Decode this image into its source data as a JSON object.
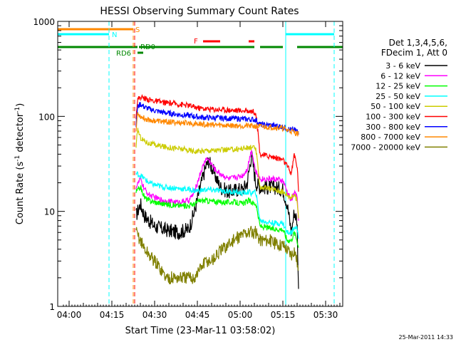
{
  "chart_data": {
    "type": "line",
    "title": "HESSI Observing Summary Count Rates",
    "xlabel": "Start Time (23-Mar-11 03:58:02)",
    "ylabel_main": "Count Rate (s",
    "ylabel_sup1": "-1",
    "ylabel_mid": " detector",
    "ylabel_sup2": "-1",
    "ylabel_end": ")",
    "x_unit": "minutes since 03:58:02",
    "xlim": [
      -2,
      98
    ],
    "ylog": true,
    "ylim": [
      1,
      1000
    ],
    "x_ticks": [
      {
        "label": "04:00",
        "x": 2
      },
      {
        "label": "04:15",
        "x": 17
      },
      {
        "label": "04:30",
        "x": 32
      },
      {
        "label": "04:45",
        "x": 47
      },
      {
        "label": "05:00",
        "x": 62
      },
      {
        "label": "05:15",
        "x": 77
      },
      {
        "label": "05:30",
        "x": 92
      }
    ],
    "y_ticks": [
      {
        "label": "1",
        "y": 1
      },
      {
        "label": "10",
        "y": 10
      },
      {
        "label": "100",
        "y": 100
      },
      {
        "label": "1000",
        "y": 1000
      }
    ],
    "legend_header": [
      "Det 1,3,4,5,6,",
      "FDecim 1, Att 0"
    ],
    "legend_placement": "right",
    "flags": [
      {
        "name": "S",
        "label": "S",
        "color": "#ff8800",
        "segments": [
          [
            -2,
            24.5
          ]
        ]
      },
      {
        "name": "N",
        "label": "N",
        "color": "#00ffff",
        "segments": [
          [
            -2,
            16
          ],
          [
            78,
            95
          ]
        ]
      },
      {
        "name": "F",
        "label": "F",
        "color": "#ff0000",
        "segments": [
          [
            49,
            55
          ],
          [
            65,
            67
          ]
        ]
      },
      {
        "name": "RD0",
        "label": "RD0",
        "color": "#008800",
        "segments": [
          [
            -2,
            26
          ],
          [
            26.5,
            67
          ],
          [
            69,
            77
          ],
          [
            82,
            98
          ]
        ]
      },
      {
        "name": "RD6",
        "label": "RD6",
        "color": "#008800",
        "segments": [
          [
            26,
            28
          ]
        ]
      }
    ],
    "vlines": [
      {
        "x": 16,
        "color": "#00ffff",
        "style": "dashed"
      },
      {
        "x": 24.5,
        "color": "#ff8800",
        "style": "dashed"
      },
      {
        "x": 25,
        "color": "#ff0000",
        "style": "dashed"
      },
      {
        "x": 78,
        "color": "#00ffff",
        "style": "solid"
      },
      {
        "x": 95,
        "color": "#00ffff",
        "style": "dashed"
      }
    ],
    "series": [
      {
        "name": "3 - 6 keV",
        "color": "#000000",
        "points": [
          [
            25.5,
            9
          ],
          [
            27,
            12
          ],
          [
            28.5,
            9
          ],
          [
            30,
            8
          ],
          [
            32,
            7
          ],
          [
            35,
            6.5
          ],
          [
            40,
            6
          ],
          [
            44,
            6.5
          ],
          [
            46,
            10
          ],
          [
            48,
            18
          ],
          [
            50,
            30
          ],
          [
            51,
            34
          ],
          [
            53,
            25
          ],
          [
            55,
            18
          ],
          [
            58,
            16
          ],
          [
            61,
            17
          ],
          [
            63,
            17
          ],
          [
            64.5,
            20
          ],
          [
            66,
            40
          ],
          [
            67.5,
            20
          ],
          [
            69,
            18
          ],
          [
            74,
            18
          ],
          [
            77,
            17
          ],
          [
            78.5,
            12
          ],
          [
            80,
            6
          ],
          [
            81,
            10
          ],
          [
            82,
            8
          ],
          [
            82.6,
            1
          ]
        ]
      },
      {
        "name": "6 - 12 keV",
        "color": "#ff00ff",
        "points": [
          [
            25.5,
            18
          ],
          [
            27,
            22
          ],
          [
            28.5,
            17
          ],
          [
            30,
            15
          ],
          [
            32,
            14
          ],
          [
            35,
            13
          ],
          [
            40,
            12.5
          ],
          [
            44,
            13
          ],
          [
            46,
            16
          ],
          [
            48,
            25
          ],
          [
            50,
            36
          ],
          [
            51,
            35
          ],
          [
            53,
            28
          ],
          [
            55,
            25
          ],
          [
            58,
            22
          ],
          [
            61,
            23
          ],
          [
            63,
            24
          ],
          [
            64.5,
            28
          ],
          [
            66,
            45
          ],
          [
            67.5,
            26
          ],
          [
            69,
            22
          ],
          [
            74,
            22
          ],
          [
            77,
            21
          ],
          [
            78.5,
            16
          ],
          [
            80,
            13
          ],
          [
            81,
            16
          ],
          [
            82,
            14
          ],
          [
            82.6,
            7
          ]
        ]
      },
      {
        "name": "12 - 25 keV",
        "color": "#00ff00",
        "points": [
          [
            25.5,
            16
          ],
          [
            27,
            18
          ],
          [
            28.5,
            14
          ],
          [
            30,
            13
          ],
          [
            32,
            12.5
          ],
          [
            35,
            12
          ],
          [
            40,
            11.5
          ],
          [
            44,
            11.5
          ],
          [
            46,
            12
          ],
          [
            48,
            13
          ],
          [
            50,
            13
          ],
          [
            55,
            12.5
          ],
          [
            60,
            12.5
          ],
          [
            63,
            12
          ],
          [
            65,
            13
          ],
          [
            66,
            12.5
          ],
          [
            67.5,
            12
          ],
          [
            69,
            7
          ],
          [
            74,
            6.5
          ],
          [
            77,
            6.5
          ],
          [
            78.5,
            5
          ],
          [
            80,
            5
          ],
          [
            81,
            6
          ],
          [
            82,
            5
          ],
          [
            82.6,
            4
          ]
        ]
      },
      {
        "name": "25 - 50 keV",
        "color": "#00ffff",
        "points": [
          [
            25.5,
            25
          ],
          [
            27,
            24
          ],
          [
            28.5,
            22
          ],
          [
            30,
            20
          ],
          [
            32,
            19
          ],
          [
            35,
            18
          ],
          [
            40,
            17.5
          ],
          [
            44,
            17
          ],
          [
            46,
            16.5
          ],
          [
            48,
            16.5
          ],
          [
            50,
            17
          ],
          [
            55,
            16.5
          ],
          [
            60,
            16
          ],
          [
            63,
            15.5
          ],
          [
            65,
            16
          ],
          [
            66,
            15.5
          ],
          [
            67.5,
            16
          ],
          [
            69,
            8
          ],
          [
            74,
            7.5
          ],
          [
            77,
            7.5
          ],
          [
            78.5,
            6
          ],
          [
            80,
            6
          ],
          [
            81,
            7
          ],
          [
            82,
            6.5
          ],
          [
            82.6,
            5
          ]
        ]
      },
      {
        "name": "50 - 100 keV",
        "color": "#cccc00",
        "points": [
          [
            25.5,
            45
          ],
          [
            26,
            75
          ],
          [
            27,
            60
          ],
          [
            28.5,
            55
          ],
          [
            30,
            52
          ],
          [
            32,
            50
          ],
          [
            35,
            48
          ],
          [
            40,
            46
          ],
          [
            44,
            44
          ],
          [
            46,
            43
          ],
          [
            48,
            43
          ],
          [
            50,
            44
          ],
          [
            55,
            44
          ],
          [
            60,
            45
          ],
          [
            63,
            46
          ],
          [
            66,
            47
          ],
          [
            67.5,
            46
          ],
          [
            69,
            18
          ],
          [
            74,
            17
          ],
          [
            77,
            16
          ],
          [
            78.5,
            15
          ],
          [
            80,
            14
          ],
          [
            81,
            15
          ],
          [
            82,
            13
          ],
          [
            82.6,
            8
          ]
        ]
      },
      {
        "name": "100 - 300 keV",
        "color": "#ff0000",
        "points": [
          [
            25.5,
            100
          ],
          [
            26,
            150
          ],
          [
            27,
            160
          ],
          [
            28.5,
            155
          ],
          [
            30,
            150
          ],
          [
            32,
            145
          ],
          [
            35,
            140
          ],
          [
            40,
            135
          ],
          [
            44,
            130
          ],
          [
            46,
            125
          ],
          [
            48,
            122
          ],
          [
            50,
            120
          ],
          [
            55,
            118
          ],
          [
            60,
            116
          ],
          [
            63,
            115
          ],
          [
            66,
            114
          ],
          [
            67.5,
            110
          ],
          [
            68,
            80
          ],
          [
            69,
            40
          ],
          [
            74,
            37
          ],
          [
            77,
            35
          ],
          [
            78.5,
            30
          ],
          [
            80,
            25
          ],
          [
            81,
            40
          ],
          [
            82,
            30
          ],
          [
            82.6,
            15
          ]
        ]
      },
      {
        "name": "300 - 800 keV",
        "color": "#0000ff",
        "points": [
          [
            25.5,
            80
          ],
          [
            26,
            125
          ],
          [
            27,
            135
          ],
          [
            28.5,
            125
          ],
          [
            30,
            120
          ],
          [
            32,
            115
          ],
          [
            35,
            110
          ],
          [
            40,
            105
          ],
          [
            44,
            102
          ],
          [
            46,
            100
          ],
          [
            48,
            98
          ],
          [
            50,
            97
          ],
          [
            55,
            96
          ],
          [
            60,
            95
          ],
          [
            63,
            94
          ],
          [
            66,
            93
          ],
          [
            67.5,
            92
          ],
          [
            69,
            82
          ],
          [
            74,
            80
          ],
          [
            77,
            78
          ],
          [
            78.5,
            74
          ],
          [
            80,
            72
          ],
          [
            81,
            72
          ],
          [
            82,
            70
          ],
          [
            82.6,
            68
          ]
        ]
      },
      {
        "name": "800 - 7000 keV",
        "color": "#ff8800",
        "points": [
          [
            25.5,
            70
          ],
          [
            26,
            110
          ],
          [
            27,
            100
          ],
          [
            28.5,
            95
          ],
          [
            30,
            92
          ],
          [
            32,
            90
          ],
          [
            35,
            88
          ],
          [
            40,
            86
          ],
          [
            44,
            85
          ],
          [
            46,
            84
          ],
          [
            48,
            83
          ],
          [
            50,
            82
          ],
          [
            55,
            81
          ],
          [
            60,
            80
          ],
          [
            63,
            80
          ],
          [
            66,
            79
          ],
          [
            67.5,
            79
          ],
          [
            69,
            78
          ],
          [
            74,
            77
          ],
          [
            77,
            75
          ],
          [
            78.5,
            72
          ],
          [
            80,
            70
          ],
          [
            81,
            68
          ],
          [
            82,
            66
          ],
          [
            82.6,
            65
          ]
        ]
      },
      {
        "name": "7000 - 20000 keV",
        "color": "#808000",
        "points": [
          [
            25.5,
            6
          ],
          [
            27,
            5
          ],
          [
            28.5,
            4
          ],
          [
            30,
            3.5
          ],
          [
            32,
            3
          ],
          [
            34,
            2.5
          ],
          [
            36,
            2
          ],
          [
            38,
            2
          ],
          [
            40,
            2
          ],
          [
            44,
            2
          ],
          [
            46,
            2
          ],
          [
            48,
            2.5
          ],
          [
            50,
            3
          ],
          [
            52,
            3
          ],
          [
            54,
            3.5
          ],
          [
            56,
            4
          ],
          [
            58,
            4.5
          ],
          [
            60,
            5
          ],
          [
            62,
            5.5
          ],
          [
            64,
            6
          ],
          [
            66,
            6
          ],
          [
            67.5,
            6
          ],
          [
            69,
            5
          ],
          [
            72,
            5
          ],
          [
            75,
            4.5
          ],
          [
            77,
            4.5
          ],
          [
            78.5,
            4
          ],
          [
            80,
            3.5
          ],
          [
            81,
            4
          ],
          [
            82,
            3
          ],
          [
            82.6,
            2
          ]
        ]
      }
    ]
  },
  "footer_date": "25-Mar-2011 14:33"
}
